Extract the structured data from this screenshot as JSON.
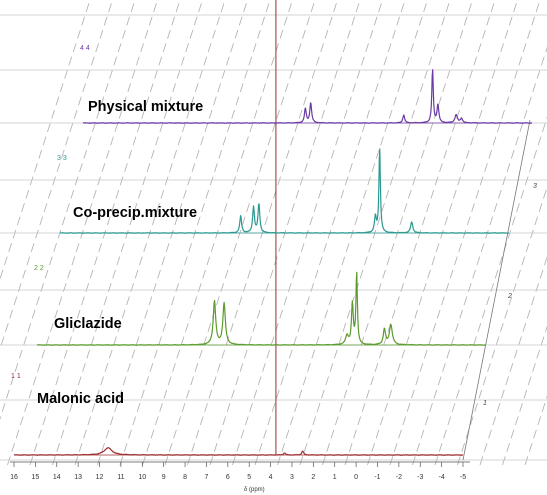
{
  "chart_data": {
    "type": "line",
    "xlabel": "δ (ppm)",
    "x_axis": {
      "reversed": true,
      "xlim": [
        16,
        -8
      ],
      "tick_labels": [
        "16",
        "15",
        "14",
        "13",
        "12",
        "11",
        "10",
        "9",
        "8",
        "7",
        "6",
        "5",
        "4",
        "3",
        "2",
        "1",
        "0",
        "-1",
        "-2",
        "-3",
        "-4",
        "-5"
      ]
    },
    "depth_axis": {
      "tick_labels": [
        "1",
        "2",
        "3"
      ]
    },
    "grid": true,
    "series": [
      {
        "name": "Malonic acid",
        "trace_label": "1 1",
        "color": "#9b2f2f",
        "peaks": [
          {
            "x": 11.6,
            "height": 0.16,
            "width": 0.22
          },
          {
            "x": 3.35,
            "height": 0.05,
            "width": 0.05
          },
          {
            "x": 2.5,
            "height": 0.09,
            "width": 0.05
          }
        ],
        "cursor_line": 3.75
      },
      {
        "name": "Gliclazide",
        "trace_label": "2 2",
        "color": "#5a9b2c",
        "peaks": [
          {
            "x": 7.7,
            "height": 0.97,
            "width": 0.07
          },
          {
            "x": 7.25,
            "height": 0.92,
            "width": 0.07
          },
          {
            "x": 1.5,
            "height": 0.2,
            "width": 0.08
          },
          {
            "x": 1.25,
            "height": 0.9,
            "width": 0.05
          },
          {
            "x": 1.05,
            "height": 1.6,
            "width": 0.04
          },
          {
            "x": -0.55,
            "height": 0.45,
            "width": 0.08
          },
          {
            "x": -0.25,
            "height": 0.35,
            "width": 0.06
          }
        ]
      },
      {
        "name": "Co-precip.mixture",
        "trace_label": "3 3",
        "color": "#2a9a90",
        "peaks": [
          {
            "x": 7.55,
            "height": 0.38,
            "width": 0.05
          },
          {
            "x": 6.95,
            "height": 0.58,
            "width": 0.05
          },
          {
            "x": 6.7,
            "height": 0.65,
            "width": 0.05
          },
          {
            "x": 1.25,
            "height": 0.35,
            "width": 0.05
          },
          {
            "x": 1.05,
            "height": 1.9,
            "width": 0.04
          },
          {
            "x": -0.45,
            "height": 0.25,
            "width": 0.06
          }
        ]
      },
      {
        "name": "Physical mixture",
        "trace_label": "4 4",
        "color": "#6a3aa4",
        "peaks": [
          {
            "x": 5.6,
            "height": 0.32,
            "width": 0.05
          },
          {
            "x": 5.35,
            "height": 0.45,
            "width": 0.05
          },
          {
            "x": 1.0,
            "height": 0.18,
            "width": 0.05
          },
          {
            "x": -0.35,
            "height": 1.2,
            "width": 0.04
          },
          {
            "x": -0.6,
            "height": 0.4,
            "width": 0.05
          },
          {
            "x": -1.45,
            "height": 0.18,
            "width": 0.07
          },
          {
            "x": -1.7,
            "height": 0.1,
            "width": 0.06
          }
        ]
      }
    ]
  }
}
